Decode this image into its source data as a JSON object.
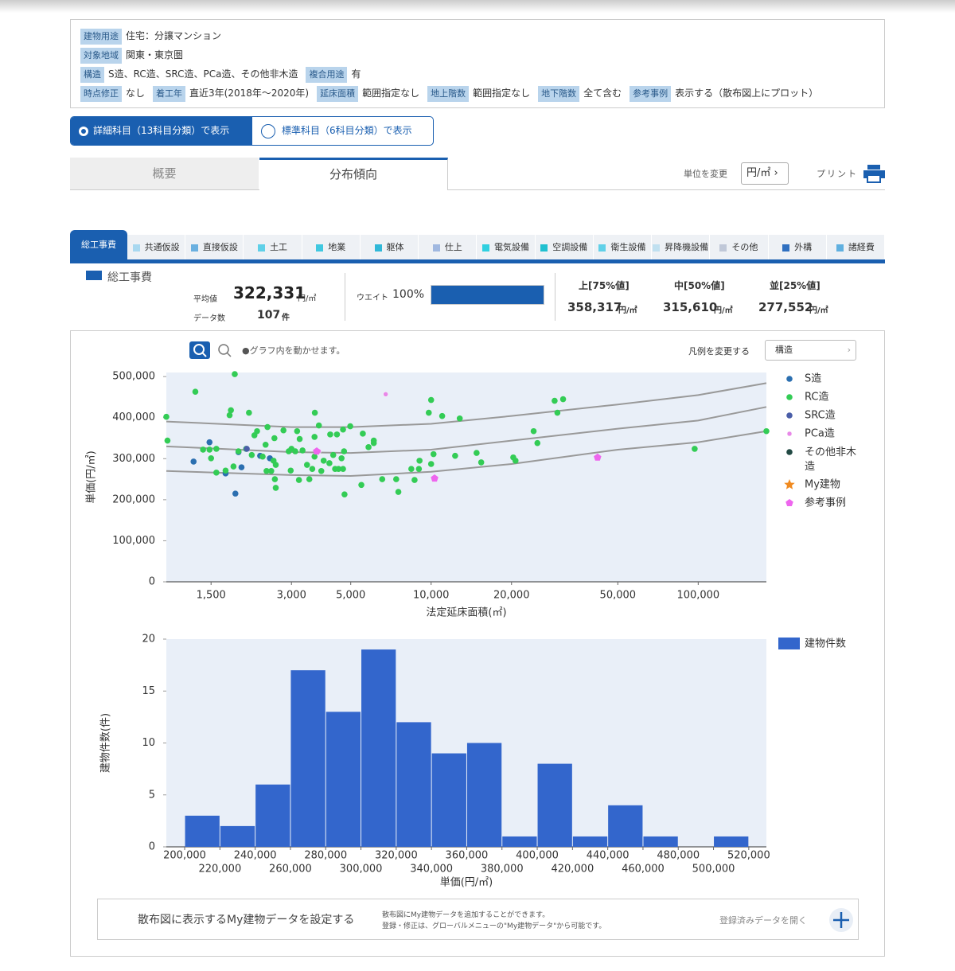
{
  "filters": [
    [
      {
        "tag": "建物用途",
        "value": "住宅：分譲マンション"
      }
    ],
    [
      {
        "tag": "対象地域",
        "value": "関東・東京圏"
      }
    ],
    [
      {
        "tag": "構造",
        "value": "S造、RC造、SRC造、PCa造、その他非木造"
      },
      {
        "tag": "複合用途",
        "value": "有"
      }
    ],
    [
      {
        "tag": "時点修正",
        "value": "なし"
      },
      {
        "tag": "着工年",
        "value": "直近3年(2018年～2020年)"
      },
      {
        "tag": "延床面積",
        "value": "範囲指定なし"
      },
      {
        "tag": "地上階数",
        "value": "範囲指定なし"
      },
      {
        "tag": "地下階数",
        "value": "全て含む"
      },
      {
        "tag": "参考事例",
        "value": "表示する（散布図上にプロット）"
      }
    ]
  ],
  "toggle": [
    "詳細科目（13科目分類）で表示",
    "標準科目（6科目分類）で表示"
  ],
  "tabs": [
    "概要",
    "分布傾向"
  ],
  "unit": {
    "label": "単位を変更",
    "value": "円/㎡"
  },
  "print": "プリント",
  "cost_tabs": [
    {
      "name": "総工事費",
      "color": "#1a5fb0"
    },
    {
      "name": "共通仮設",
      "color": "#a8d8f0"
    },
    {
      "name": "直接仮設",
      "color": "#6ab0e0"
    },
    {
      "name": "土工",
      "color": "#5fd0e8"
    },
    {
      "name": "地業",
      "color": "#40c8e0"
    },
    {
      "name": "躯体",
      "color": "#30b8d8"
    },
    {
      "name": "仕上",
      "color": "#a0b8e0"
    },
    {
      "name": "電気設備",
      "color": "#30d0e0"
    },
    {
      "name": "空調設備",
      "color": "#20c0d0"
    },
    {
      "name": "衛生設備",
      "color": "#60d0e8"
    },
    {
      "name": "昇降機設備",
      "color": "#c0e0f0"
    },
    {
      "name": "その他",
      "color": "#c0c8d8"
    },
    {
      "name": "外構",
      "color": "#3070c0"
    },
    {
      "name": "諸経費",
      "color": "#60b0e0"
    }
  ],
  "stats": {
    "heading": "総工事費",
    "avg_label": "平均値",
    "avg": "322,331",
    "unit": "円/㎡",
    "count_label": "データ数",
    "count": "107",
    "count_unit": "件",
    "weight_label": "ウエイト",
    "weight": 100,
    "weight_label_value": "100%",
    "quantiles": [
      {
        "label": "上[75%値]",
        "value": "358,317"
      },
      {
        "label": "中[50%値]",
        "value": "315,610"
      },
      {
        "label": "並[25%値]",
        "value": "277,552"
      }
    ]
  },
  "toolbar": {
    "hint": "●グラフ内を動かせます。",
    "legend_label": "凡例を変更する",
    "legend_select": "構造"
  },
  "chart_data": [
    {
      "type": "scatter",
      "x_label": "法定延床面積(㎡)",
      "y_label": "単価(円/㎡)",
      "log_x": true,
      "xlim": [
        1020,
        180000
      ],
      "ylim": [
        0,
        510000
      ],
      "xticks": [
        {
          "value": 1500,
          "label": "1,500"
        },
        {
          "value": 3000,
          "label": "3,000"
        },
        {
          "value": 5000,
          "label": "5,000"
        },
        {
          "value": 10000,
          "label": "10,000"
        },
        {
          "value": 20000,
          "label": "20,000"
        },
        {
          "value": 50000,
          "label": "50,000"
        },
        {
          "value": 100000,
          "label": "100,000"
        }
      ],
      "yticks": [
        0,
        {
          "value": 100000,
          "label": "100,000"
        },
        {
          "value": 200000,
          "label": "200,000"
        },
        {
          "value": 300000,
          "label": "300,000"
        },
        {
          "value": 400000,
          "label": "400,000"
        },
        {
          "value": 500000,
          "label": "500,000"
        }
      ],
      "trend_lines": [
        {
          "color": "#999999",
          "x": [
            1020,
            3000,
            5000,
            10000,
            20000,
            50000,
            100000,
            180000
          ],
          "values": [
            390600,
            377000,
            377000,
            385000,
            404000,
            432000,
            455000,
            484000
          ]
        },
        {
          "color": "#999999",
          "x": [
            1020,
            3000,
            5000,
            10000,
            20000,
            50000,
            100000,
            180000
          ],
          "values": [
            330000,
            316000,
            314000,
            322000,
            344000,
            373000,
            393000,
            426000
          ]
        },
        {
          "color": "#999999",
          "x": [
            1020,
            3000,
            5000,
            10000,
            20000,
            50000,
            100000,
            180000
          ],
          "values": [
            270000,
            260000,
            258000,
            268000,
            287000,
            322000,
            340000,
            367000
          ]
        }
      ],
      "series": [
        {
          "name": "S造",
          "color": "#2b6fb0",
          "marker": "circle",
          "x": [
            1290,
            1480,
            1700,
            1850,
            1900,
            1950,
            2290,
            2490
          ],
          "values": [
            293000,
            340000,
            264000,
            215000,
            316000,
            279000,
            307000,
            301000
          ]
        },
        {
          "name": "RC造",
          "color": "#33cc55",
          "marker": "circle",
          "x": [
            1020,
            1030,
            1310,
            1840,
            1780,
            1760,
            2080,
            1400,
            1480,
            1570,
            1500,
            1570,
            1700,
            1820,
            1900,
            2030,
            2180,
            2230,
            2440,
            2590,
            2800,
            2400,
            2130,
            2340,
            2570,
            2420,
            2620,
            2600,
            2620,
            2520,
            2930,
            3000,
            3100,
            3150,
            3220,
            3300,
            2980,
            3200,
            3500,
            3430,
            3590,
            3660,
            3670,
            3800,
            3660,
            3880,
            3960,
            4190,
            4160,
            4300,
            4370,
            4440,
            4500,
            4680,
            4720,
            4620,
            4680,
            4740,
            4980,
            5480,
            5550,
            5830,
            6100,
            6100,
            6560,
            7400,
            7540,
            8670,
            8430,
            9050,
            9000,
            9800,
            10000,
            10210,
            10000,
            11000,
            12800,
            12300,
            14800,
            15400,
            20300,
            20700,
            24200,
            25000,
            29000,
            29700,
            31200,
            97000,
            180000
          ],
          "values": [
            402000,
            344000,
            463000,
            506000,
            418000,
            406000,
            412000,
            322000,
            322000,
            324000,
            301000,
            266000,
            271000,
            281000,
            318000,
            324000,
            357000,
            367000,
            377000,
            350000,
            369000,
            334000,
            309000,
            305000,
            295000,
            270000,
            285000,
            250000,
            229000,
            270000,
            318000,
            324000,
            318000,
            367000,
            348000,
            320000,
            271000,
            248000,
            250000,
            285000,
            275000,
            305000,
            412000,
            381000,
            353000,
            270000,
            295000,
            359000,
            289000,
            309000,
            275000,
            359000,
            275000,
            371000,
            318000,
            301000,
            275000,
            213000,
            379000,
            236000,
            361000,
            328000,
            344000,
            338000,
            250000,
            250000,
            219000,
            248000,
            275000,
            295000,
            275000,
            412000,
            443000,
            311000,
            287000,
            404000,
            398000,
            307000,
            314000,
            291000,
            303000,
            295000,
            367000,
            338000,
            441000,
            412000,
            445000,
            324000,
            367000
          ]
        },
        {
          "name": "SRC造",
          "color": "#4a5ea8",
          "marker": "circle",
          "x": [
            2040
          ],
          "values": [
            324000
          ]
        },
        {
          "name": "PCa造",
          "color": "#e888e8",
          "marker": "small",
          "x": [
            6760,
            3800
          ],
          "values": [
            457000,
            318000
          ]
        },
        {
          "name": "その他非木造",
          "color": "#224a44",
          "marker": "circle",
          "x": [],
          "values": []
        },
        {
          "name": "My建物",
          "color": "#f08a20",
          "marker": "star",
          "x": [],
          "values": []
        },
        {
          "name": "参考事例",
          "color": "#ee66ee",
          "marker": "pentagon",
          "x": [
            10300,
            42000,
            3730
          ],
          "values": [
            252000,
            303000,
            318000
          ]
        }
      ]
    },
    {
      "type": "histogram",
      "x_label": "単価(円/㎡)",
      "y_label": "建物件数(件)",
      "color": "#3366cc",
      "series_name": "建物件数",
      "bins": [
        200000,
        220000,
        240000,
        260000,
        280000,
        300000,
        320000,
        340000,
        360000,
        380000,
        400000,
        420000,
        440000,
        460000,
        480000,
        500000,
        520000
      ],
      "values": [
        3,
        2,
        6,
        17,
        13,
        19,
        12,
        9,
        10,
        1,
        8,
        1,
        4,
        1,
        0,
        1
      ],
      "xlim": [
        189600,
        530000
      ],
      "ylim": [
        0,
        20
      ],
      "yticks": [
        0,
        5,
        10,
        15,
        20
      ],
      "xticks": [
        {
          "value": 200000,
          "label": "200,000"
        },
        {
          "value": 220000,
          "label": "220,000"
        },
        {
          "value": 240000,
          "label": "240,000"
        },
        {
          "value": 260000,
          "label": "260,000"
        },
        {
          "value": 280000,
          "label": "280,000"
        },
        {
          "value": 300000,
          "label": "300,000"
        },
        {
          "value": 320000,
          "label": "320,000"
        },
        {
          "value": 340000,
          "label": "340,000"
        },
        {
          "value": 360000,
          "label": "360,000"
        },
        {
          "value": 380000,
          "label": "380,000"
        },
        {
          "value": 400000,
          "label": "400,000"
        },
        {
          "value": 420000,
          "label": "420,000"
        },
        {
          "value": 440000,
          "label": "440,000"
        },
        {
          "value": 460000,
          "label": "460,000"
        },
        {
          "value": 480000,
          "label": "480,000"
        },
        {
          "value": 500000,
          "label": "500,000"
        },
        {
          "value": 520000,
          "label": "520,000"
        }
      ]
    }
  ],
  "my_building": {
    "title": "散布図に表示するMy建物データを設定する",
    "note1": "散布図にMy建物データを追加することができます。",
    "note2": "登録・修正は、グローバルメニューの\"My建物データ\"から可能です。",
    "open": "登録済みデータを開く"
  }
}
